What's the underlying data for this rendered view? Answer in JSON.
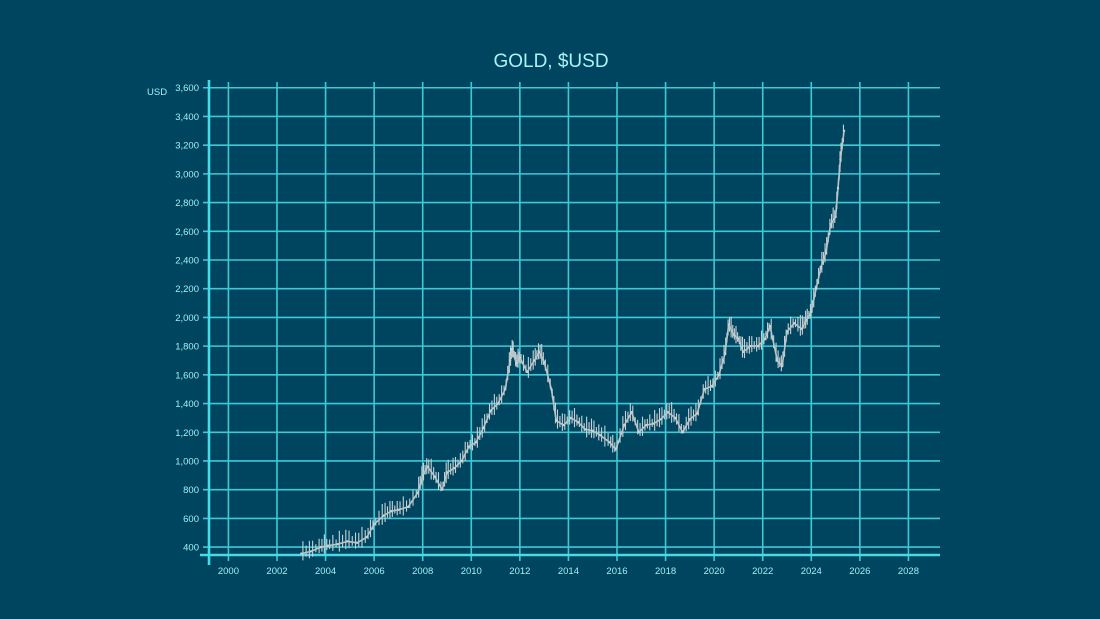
{
  "chart_data": {
    "type": "line",
    "title": "GOLD, $USD",
    "y_unit_label": "USD",
    "xlabel": "",
    "ylabel": "",
    "xlim": [
      1999.2,
      2029.3
    ],
    "ylim": [
      345,
      3640
    ],
    "x_ticks": [
      2000,
      2002,
      2004,
      2006,
      2008,
      2010,
      2012,
      2014,
      2016,
      2018,
      2020,
      2022,
      2024,
      2026,
      2028
    ],
    "x_tick_labels": [
      "2000",
      "2002",
      "2004",
      "2006",
      "2008",
      "2010",
      "2012",
      "2014",
      "2016",
      "2018",
      "2020",
      "2022",
      "2024",
      "2026",
      "2028"
    ],
    "y_ticks": [
      400,
      600,
      800,
      1000,
      1200,
      1400,
      1600,
      1800,
      2000,
      2200,
      2400,
      2600,
      2800,
      3000,
      3200,
      3400,
      3600
    ],
    "y_tick_labels": [
      "400",
      "600",
      "800",
      "1,000",
      "1,200",
      "1,400",
      "1,600",
      "1,800",
      "2,000",
      "2,200",
      "2,400",
      "2,600",
      "2,800",
      "3,000",
      "3,200",
      "3,400",
      "3,600"
    ],
    "grid": true,
    "colors": {
      "background": "#004560",
      "grid": "#3ec9d6",
      "axis": "#47dbe8",
      "text": "#9ff0f5",
      "series": "#b9c6c9"
    },
    "series": [
      {
        "name": "",
        "x": [
          2003.0,
          2003.4,
          2003.8,
          2004.1,
          2004.5,
          2004.9,
          2005.3,
          2005.7,
          2006.0,
          2006.4,
          2006.7,
          2007.0,
          2007.4,
          2007.8,
          2008.0,
          2008.2,
          2008.5,
          2008.8,
          2009.0,
          2009.3,
          2009.6,
          2009.9,
          2010.2,
          2010.5,
          2010.8,
          2011.1,
          2011.4,
          2011.6,
          2011.7,
          2011.85,
          2012.0,
          2012.3,
          2012.6,
          2012.8,
          2013.0,
          2013.3,
          2013.5,
          2013.8,
          2014.1,
          2014.4,
          2014.7,
          2015.0,
          2015.3,
          2015.7,
          2015.95,
          2016.3,
          2016.6,
          2016.9,
          2017.2,
          2017.5,
          2017.8,
          2018.1,
          2018.4,
          2018.7,
          2019.0,
          2019.3,
          2019.6,
          2019.9,
          2020.2,
          2020.45,
          2020.6,
          2020.8,
          2021.0,
          2021.2,
          2021.5,
          2021.8,
          2022.1,
          2022.3,
          2022.6,
          2022.8,
          2023.0,
          2023.3,
          2023.6,
          2023.8,
          2024.0,
          2024.2,
          2024.4,
          2024.6,
          2024.8,
          2025.0,
          2025.1,
          2025.2,
          2025.35
        ],
        "values": [
          355,
          370,
          400,
          410,
          420,
          440,
          430,
          470,
          560,
          620,
          650,
          660,
          680,
          780,
          900,
          960,
          890,
          800,
          920,
          950,
          1000,
          1100,
          1130,
          1230,
          1350,
          1400,
          1500,
          1700,
          1780,
          1680,
          1720,
          1620,
          1700,
          1760,
          1690,
          1500,
          1280,
          1250,
          1300,
          1270,
          1220,
          1210,
          1180,
          1130,
          1080,
          1250,
          1340,
          1200,
          1250,
          1260,
          1290,
          1340,
          1300,
          1200,
          1290,
          1330,
          1500,
          1520,
          1600,
          1750,
          1950,
          1880,
          1850,
          1760,
          1800,
          1800,
          1850,
          1940,
          1700,
          1660,
          1900,
          1960,
          1920,
          1980,
          2040,
          2200,
          2350,
          2450,
          2650,
          2700,
          2900,
          3100,
          3300
        ]
      }
    ]
  }
}
